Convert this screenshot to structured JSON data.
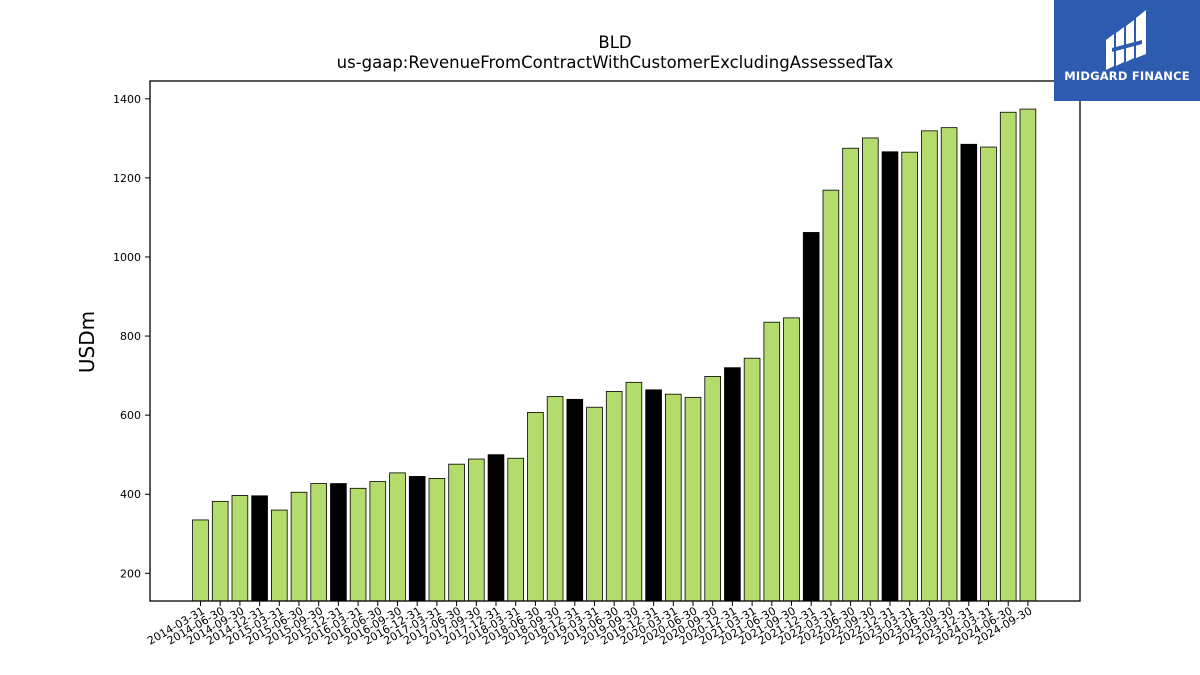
{
  "chart_data": {
    "type": "bar",
    "title": "BLD",
    "subtitle": "us-gaap:RevenueFromContractWithCustomerExcludingAssessedTax",
    "xlabel": "",
    "ylabel": "USDm",
    "ylim": [
      130,
      1445
    ],
    "yticks": [
      200,
      400,
      600,
      800,
      1000,
      1200,
      1400
    ],
    "grid": false,
    "colors": {
      "quarter": "#b3dc6c",
      "year_end": "#000000",
      "edge": "#000000"
    },
    "categories": [
      "2014-03-31",
      "2014-06-30",
      "2014-09-30",
      "2014-12-31",
      "2015-03-31",
      "2015-06-30",
      "2015-09-30",
      "2015-12-31",
      "2016-03-31",
      "2016-06-30",
      "2016-09-30",
      "2016-12-31",
      "2017-03-31",
      "2017-06-30",
      "2017-09-30",
      "2017-12-31",
      "2018-03-31",
      "2018-06-30",
      "2018-09-30",
      "2018-12-31",
      "2019-03-31",
      "2019-06-30",
      "2019-09-30",
      "2019-12-31",
      "2020-03-31",
      "2020-06-30",
      "2020-09-30",
      "2020-12-31",
      "2021-03-31",
      "2021-06-30",
      "2021-09-30",
      "2021-12-31",
      "2022-03-31",
      "2022-06-30",
      "2022-09-30",
      "2022-12-31",
      "2023-03-31",
      "2023-06-30",
      "2023-09-30",
      "2023-12-31",
      "2024-03-31",
      "2024-06-30",
      "2024-09-30"
    ],
    "values": [
      335,
      382,
      397,
      396,
      360,
      405,
      427,
      427,
      415,
      432,
      454,
      445,
      440,
      476,
      489,
      500,
      491,
      607,
      647,
      640,
      620,
      660,
      683,
      664,
      653,
      645,
      698,
      720,
      744,
      835,
      846,
      1062,
      1169,
      1275,
      1301,
      1266,
      1265,
      1319,
      1327,
      1285,
      1278,
      1366,
      1374
    ],
    "highlight": [
      false,
      false,
      false,
      true,
      false,
      false,
      false,
      true,
      false,
      false,
      false,
      true,
      false,
      false,
      false,
      true,
      false,
      false,
      false,
      true,
      false,
      false,
      false,
      true,
      false,
      false,
      false,
      true,
      false,
      false,
      false,
      true,
      false,
      false,
      false,
      true,
      false,
      false,
      false,
      true,
      false,
      false,
      false
    ]
  },
  "logo": {
    "text": "MIDGARD FINANCE"
  }
}
